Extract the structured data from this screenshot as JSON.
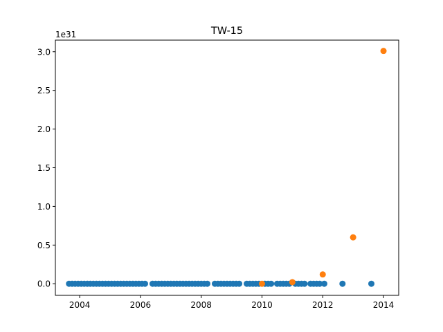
{
  "chart_data": {
    "type": "scatter",
    "title": "TW-15",
    "xlabel": "",
    "ylabel": "",
    "y_offset_label": "1e31",
    "xlim": [
      2003.2,
      2014.5
    ],
    "ylim": [
      -0.15,
      3.15
    ],
    "x_ticks": [
      2004,
      2006,
      2008,
      2010,
      2012,
      2014
    ],
    "x_tick_labels": [
      "2004",
      "2006",
      "2008",
      "2010",
      "2012",
      "2014"
    ],
    "y_ticks": [
      0.0,
      0.5,
      1.0,
      1.5,
      2.0,
      2.5,
      3.0
    ],
    "y_tick_labels": [
      "0.0",
      "0.5",
      "1.0",
      "1.5",
      "2.0",
      "2.5",
      "3.0"
    ],
    "grid": false,
    "series": [
      {
        "color": "#1f77b4",
        "points": [
          [
            2003.65,
            0
          ],
          [
            2003.75,
            0
          ],
          [
            2003.85,
            0
          ],
          [
            2003.95,
            0
          ],
          [
            2004.05,
            0
          ],
          [
            2004.15,
            0
          ],
          [
            2004.25,
            0
          ],
          [
            2004.35,
            0
          ],
          [
            2004.45,
            0
          ],
          [
            2004.55,
            0
          ],
          [
            2004.65,
            0
          ],
          [
            2004.75,
            0
          ],
          [
            2004.85,
            0
          ],
          [
            2004.95,
            0
          ],
          [
            2005.05,
            0
          ],
          [
            2005.15,
            0
          ],
          [
            2005.25,
            0
          ],
          [
            2005.35,
            0
          ],
          [
            2005.45,
            0
          ],
          [
            2005.55,
            0
          ],
          [
            2005.65,
            0
          ],
          [
            2005.75,
            0
          ],
          [
            2005.85,
            0
          ],
          [
            2005.95,
            0
          ],
          [
            2006.05,
            0
          ],
          [
            2006.15,
            0
          ],
          [
            2006.4,
            0
          ],
          [
            2006.5,
            0
          ],
          [
            2006.6,
            0
          ],
          [
            2006.7,
            0
          ],
          [
            2006.8,
            0
          ],
          [
            2006.9,
            0
          ],
          [
            2007.0,
            0
          ],
          [
            2007.1,
            0
          ],
          [
            2007.2,
            0
          ],
          [
            2007.3,
            0
          ],
          [
            2007.4,
            0
          ],
          [
            2007.5,
            0
          ],
          [
            2007.6,
            0
          ],
          [
            2007.7,
            0
          ],
          [
            2007.8,
            0
          ],
          [
            2007.9,
            0
          ],
          [
            2008.0,
            0
          ],
          [
            2008.1,
            0
          ],
          [
            2008.2,
            0
          ],
          [
            2008.45,
            0
          ],
          [
            2008.55,
            0
          ],
          [
            2008.65,
            0
          ],
          [
            2008.75,
            0
          ],
          [
            2008.85,
            0
          ],
          [
            2008.95,
            0
          ],
          [
            2009.05,
            0
          ],
          [
            2009.15,
            0
          ],
          [
            2009.25,
            0
          ],
          [
            2009.5,
            0
          ],
          [
            2009.6,
            0
          ],
          [
            2009.7,
            0
          ],
          [
            2009.8,
            0
          ],
          [
            2009.9,
            0
          ],
          [
            2010.1,
            0
          ],
          [
            2010.2,
            0
          ],
          [
            2010.3,
            0
          ],
          [
            2010.5,
            0
          ],
          [
            2010.6,
            0
          ],
          [
            2010.7,
            0
          ],
          [
            2010.8,
            0
          ],
          [
            2010.9,
            0
          ],
          [
            2011.1,
            0
          ],
          [
            2011.2,
            0
          ],
          [
            2011.3,
            0
          ],
          [
            2011.4,
            0
          ],
          [
            2011.6,
            0
          ],
          [
            2011.7,
            0
          ],
          [
            2011.8,
            0
          ],
          [
            2011.9,
            0
          ],
          [
            2012.05,
            0
          ],
          [
            2012.65,
            0
          ],
          [
            2013.6,
            0
          ]
        ]
      },
      {
        "color": "#ff7f0e",
        "points": [
          [
            2010.0,
            0.0
          ],
          [
            2011.0,
            0.02
          ],
          [
            2012.0,
            0.12
          ],
          [
            2013.0,
            0.6
          ],
          [
            2014.0,
            3.01
          ]
        ]
      }
    ]
  }
}
